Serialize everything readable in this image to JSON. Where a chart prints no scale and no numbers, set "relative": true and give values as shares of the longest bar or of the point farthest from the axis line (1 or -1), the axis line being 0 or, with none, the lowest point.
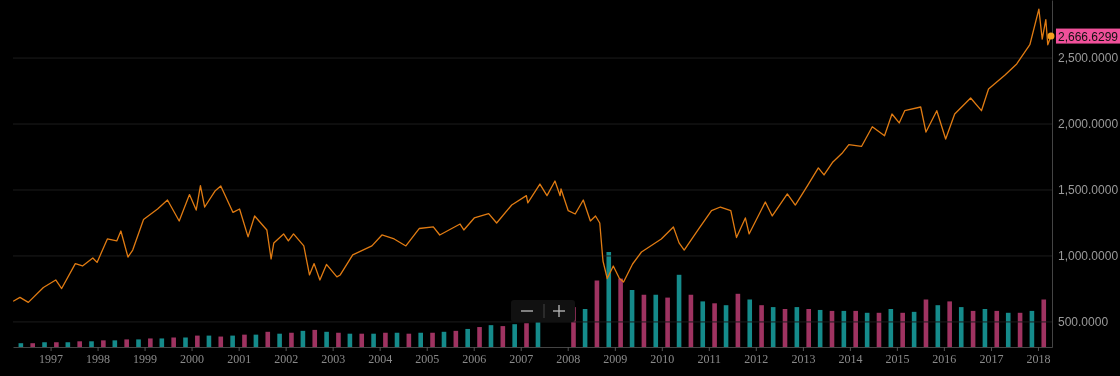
{
  "chart_data": [
    {
      "type": "line",
      "xlim": [
        "1996-03-15",
        "2018-04-20"
      ],
      "ylim": [
        310,
        2940
      ],
      "xticks": [
        "1997",
        "1998",
        "1999",
        "2000",
        "2001",
        "2002",
        "2003",
        "2004",
        "2005",
        "2006",
        "2007",
        "2008",
        "2009",
        "2010",
        "2011",
        "2012",
        "2013",
        "2014",
        "2015",
        "2016",
        "2017",
        "2018"
      ],
      "yticks": [
        {
          "value": 500,
          "label": "500.0000"
        },
        {
          "value": 1000,
          "label": "1,000.0000"
        },
        {
          "value": 1500,
          "label": "1,500.0000"
        },
        {
          "value": 2000,
          "label": "2,000.0000"
        },
        {
          "value": 2500,
          "label": "2,500.0000"
        }
      ],
      "grid": "y",
      "series": [
        {
          "color": "#e07b12",
          "x": [
            "1996-03-20",
            "1996-05-08",
            "1996-07-12",
            "1996-11-06",
            "1997-02-10",
            "1997-03-28",
            "1997-07-12",
            "1997-09-06",
            "1997-11-25",
            "1997-12-28",
            "1998-03-18",
            "1998-05-30",
            "1998-07-01",
            "1998-08-25",
            "1998-10-01",
            "1998-12-24",
            "1999-04-12",
            "1999-06-28",
            "1999-09-27",
            "1999-12-16",
            "2000-02-06",
            "2000-03-10",
            "2000-04-12",
            "2000-07-01",
            "2000-08-15",
            "2000-11-18",
            "2001-01-08",
            "2001-03-15",
            "2001-05-05",
            "2001-08-08",
            "2001-09-10",
            "2001-10-01",
            "2001-12-16",
            "2002-01-22",
            "2002-03-03",
            "2002-05-22",
            "2002-07-05",
            "2002-08-10",
            "2002-09-24",
            "2002-11-14",
            "2003-02-03",
            "2003-03-01",
            "2003-06-06",
            "2003-11-02",
            "2004-01-19",
            "2004-04-23",
            "2004-07-23",
            "2004-11-03",
            "2005-02-21",
            "2005-04-12",
            "2005-09-17",
            "2005-10-16",
            "2006-01-05",
            "2006-04-27",
            "2006-06-28",
            "2006-10-23",
            "2007-02-14",
            "2007-02-25",
            "2007-05-30",
            "2007-07-24",
            "2007-09-24",
            "2007-11-03",
            "2007-11-10",
            "2008-01-05",
            "2008-02-28",
            "2008-05-01",
            "2008-06-25",
            "2008-08-04",
            "2008-09-06",
            "2008-10-01",
            "2008-11-03",
            "2008-12-20",
            "2009-02-06",
            "2009-03-10",
            "2009-05-19",
            "2009-07-27",
            "2009-12-28",
            "2010-04-01",
            "2010-05-15",
            "2010-06-24",
            "2010-10-16",
            "2011-01-22",
            "2011-04-01",
            "2011-06-21",
            "2011-08-04",
            "2011-10-12",
            "2011-11-10",
            "2012-03-15",
            "2012-05-08",
            "2012-09-02",
            "2012-11-03",
            "2013-02-06",
            "2013-05-01",
            "2013-06-14",
            "2013-08-18",
            "2013-10-30",
            "2013-12-24",
            "2014-04-01",
            "2014-06-24",
            "2014-09-27",
            "2014-11-24",
            "2015-01-19",
            "2015-03-03",
            "2015-07-05",
            "2015-08-15",
            "2015-11-07",
            "2016-01-15",
            "2016-03-25",
            "2016-07-27",
            "2016-10-19",
            "2016-12-13",
            "2017-04-20",
            "2017-07-20",
            "2017-10-30",
            "2018-01-08",
            "2018-02-03",
            "2018-03-03",
            "2018-03-18",
            "2018-04-12"
          ],
          "values": [
            659,
            686,
            648,
            761,
            818,
            753,
            942,
            924,
            985,
            951,
            1129,
            1114,
            1189,
            992,
            1045,
            1276,
            1356,
            1424,
            1265,
            1465,
            1348,
            1533,
            1371,
            1492,
            1530,
            1330,
            1356,
            1145,
            1303,
            1197,
            977,
            1099,
            1167,
            1114,
            1167,
            1076,
            856,
            942,
            818,
            936,
            842,
            856,
            1008,
            1076,
            1159,
            1129,
            1076,
            1208,
            1221,
            1159,
            1242,
            1197,
            1288,
            1321,
            1250,
            1386,
            1457,
            1402,
            1545,
            1457,
            1568,
            1457,
            1508,
            1343,
            1318,
            1424,
            1265,
            1303,
            1250,
            962,
            829,
            924,
            829,
            803,
            939,
            1030,
            1129,
            1220,
            1099,
            1045,
            1208,
            1343,
            1371,
            1343,
            1140,
            1288,
            1167,
            1409,
            1303,
            1470,
            1386,
            1533,
            1667,
            1614,
            1708,
            1776,
            1844,
            1830,
            1979,
            1911,
            2076,
            2008,
            2101,
            2129,
            1939,
            2101,
            1886,
            2076,
            2197,
            2101,
            2265,
            2371,
            2455,
            2601,
            2871,
            2644,
            2791,
            2601,
            2666.6299
          ]
        }
      ],
      "annotations": [
        {
          "text": "2,666.6299",
          "x": "2018-04-12",
          "y": 2666.6299
        }
      ]
    },
    {
      "type": "bar",
      "relative": true,
      "xlim": [
        "1996-03-15",
        "2018-04-20"
      ],
      "series": [
        {
          "color": "#b0396c",
          "x": [
            "1996-08-15",
            "1997-02-15",
            "1997-08-15",
            "1998-02-15",
            "1998-08-15",
            "1999-02-15",
            "1999-08-15",
            "2000-02-15",
            "2000-08-15",
            "2001-02-15",
            "2001-08-15",
            "2002-02-15",
            "2002-08-15",
            "2003-02-15",
            "2003-08-15",
            "2004-02-15",
            "2004-08-15",
            "2005-02-15",
            "2005-08-15",
            "2006-02-15",
            "2006-08-15",
            "2007-02-15",
            "2007-08-15",
            "2008-02-15",
            "2008-08-15",
            "2009-02-15",
            "2009-08-15",
            "2010-02-15",
            "2010-08-15",
            "2011-02-15",
            "2011-08-15",
            "2012-02-15",
            "2012-08-15",
            "2013-02-15",
            "2013-08-15",
            "2014-02-15",
            "2014-08-15",
            "2015-02-15",
            "2015-08-15",
            "2016-02-15",
            "2016-08-15",
            "2017-02-15",
            "2017-08-15",
            "2018-02-15"
          ],
          "values": [
            0.04,
            0.05,
            0.06,
            0.07,
            0.08,
            0.09,
            0.1,
            0.12,
            0.11,
            0.13,
            0.16,
            0.15,
            0.18,
            0.15,
            0.14,
            0.15,
            0.14,
            0.15,
            0.17,
            0.21,
            0.22,
            0.25,
            null,
            0.42,
            0.7,
            0.72,
            0.55,
            0.52,
            0.55,
            0.46,
            0.56,
            0.44,
            0.4,
            0.4,
            0.38,
            0.38,
            0.36,
            0.36,
            0.5,
            0.48,
            0.38,
            0.38,
            0.36,
            0.5
          ]
        },
        {
          "color": "#179a9a",
          "x": [
            "1996-05-15",
            "1996-11-15",
            "1997-05-15",
            "1997-11-15",
            "1998-05-15",
            "1998-11-15",
            "1999-05-15",
            "1999-11-15",
            "2000-05-15",
            "2000-11-15",
            "2001-05-15",
            "2001-11-15",
            "2002-05-15",
            "2002-11-15",
            "2003-05-15",
            "2003-11-15",
            "2004-05-15",
            "2004-11-15",
            "2005-05-15",
            "2005-11-15",
            "2006-05-15",
            "2006-11-15",
            "2007-05-15",
            "2007-11-15",
            "2008-05-15",
            "2008-11-15",
            "2009-05-15",
            "2009-11-15",
            "2010-05-15",
            "2010-11-15",
            "2011-05-15",
            "2011-11-15",
            "2012-05-15",
            "2012-11-15",
            "2013-05-15",
            "2013-11-15",
            "2014-05-15",
            "2014-11-15",
            "2015-05-15",
            "2015-11-15",
            "2016-05-15",
            "2016-11-15",
            "2017-05-15",
            "2017-11-15"
          ],
          "values": [
            0.04,
            0.05,
            0.05,
            0.06,
            0.07,
            0.08,
            0.09,
            0.1,
            0.12,
            0.12,
            0.13,
            0.14,
            0.17,
            0.16,
            0.14,
            0.14,
            0.15,
            0.15,
            0.16,
            0.19,
            0.23,
            0.24,
            0.26,
            null,
            0.4,
            1.0,
            0.6,
            0.55,
            0.76,
            0.48,
            0.44,
            0.5,
            0.42,
            0.42,
            0.39,
            0.38,
            0.36,
            0.4,
            0.37,
            0.44,
            0.42,
            0.4,
            0.36,
            0.38
          ]
        }
      ]
    }
  ]
}
